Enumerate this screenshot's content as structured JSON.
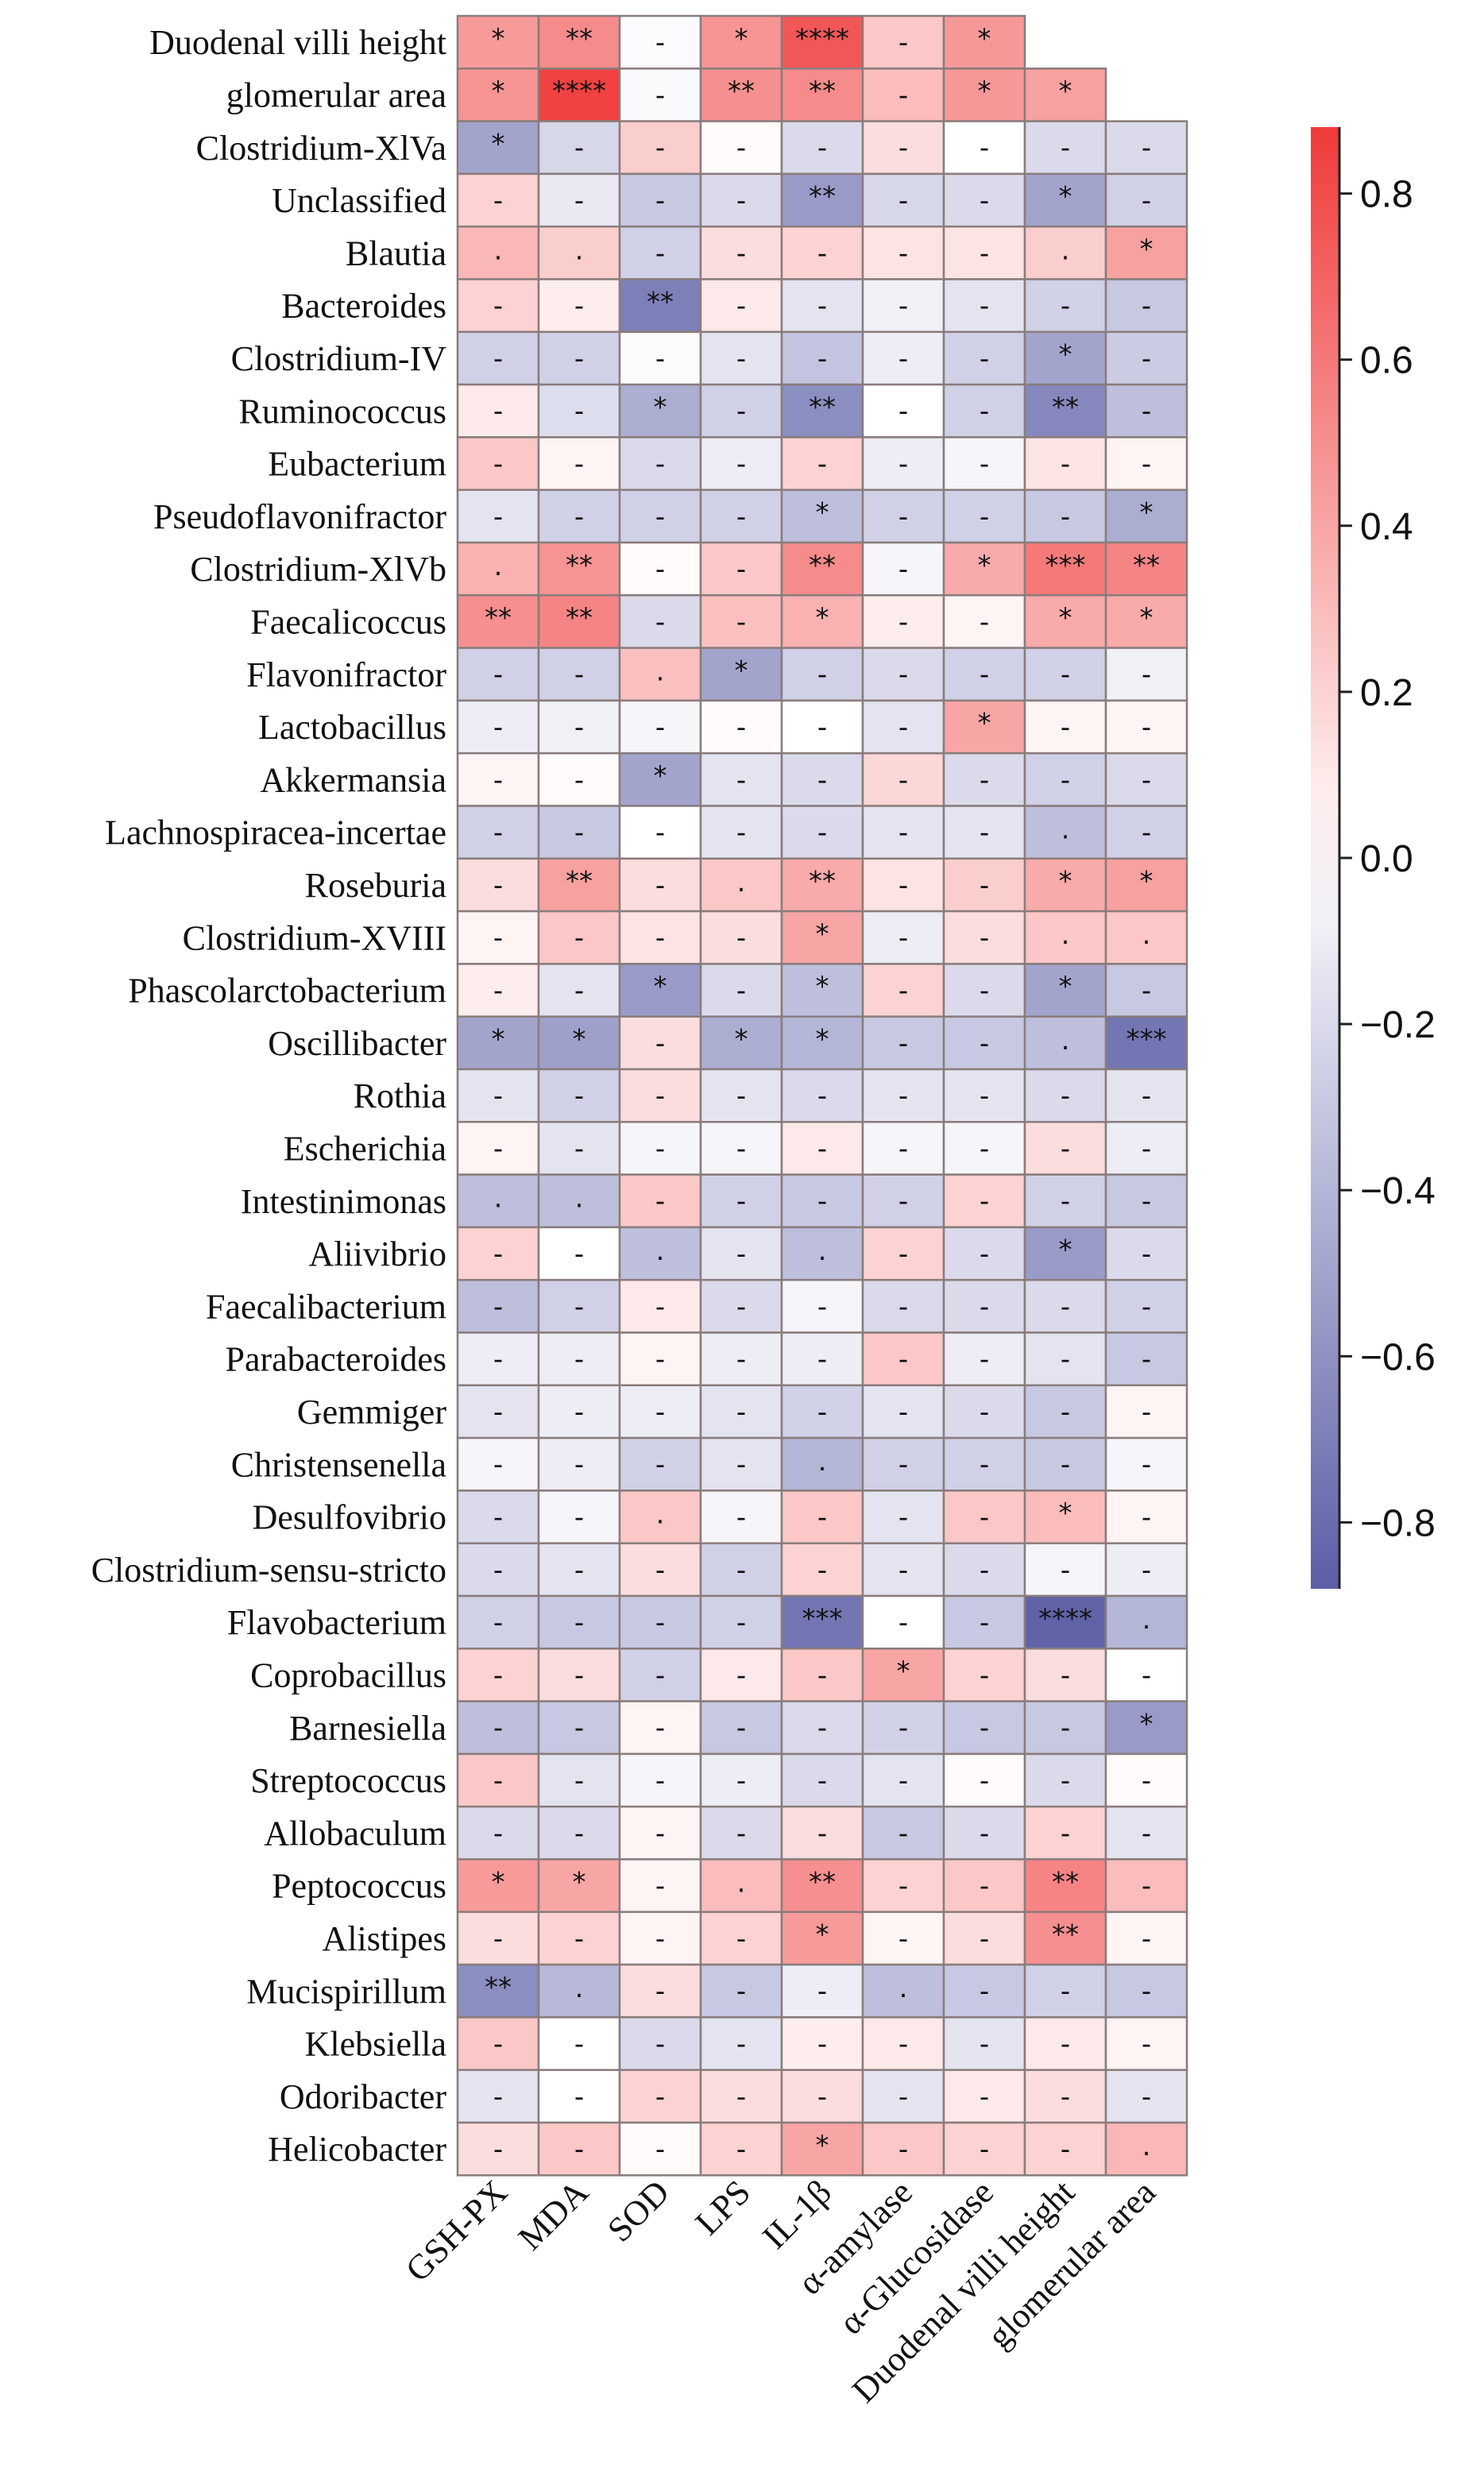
{
  "chart_data": {
    "type": "heatmap",
    "title": "",
    "xlabel": "",
    "ylabel": "",
    "columns": [
      "GSH-PX",
      "MDA",
      "SOD",
      "LPS",
      "IL-1β",
      "α-amylase",
      "α-Glucosidase",
      "Duodenal villi height",
      "glomerular area"
    ],
    "rows": [
      "Duodenal villi height",
      "glomerular area",
      "Clostridium-XlVa",
      "Unclassified",
      "Blautia",
      "Bacteroides",
      "Clostridium-IV",
      "Ruminococcus",
      "Eubacterium",
      "Pseudoflavonifractor",
      "Clostridium-XlVb",
      "Faecalicoccus",
      "Flavonifractor",
      "Lactobacillus",
      "Akkermansia",
      "Lachnospiracea-incertae",
      "Roseburia",
      "Clostridium-XVIII",
      "Phascolarctobacterium",
      "Oscillibacter",
      "Rothia",
      "Escherichia",
      "Intestinimonas",
      "Aliivibrio",
      "Faecalibacterium",
      "Parabacteroides",
      "Gemmiger",
      "Christensenella",
      "Desulfovibrio",
      "Clostridium-sensu-stricto",
      "Flavobacterium",
      "Coprobacillus",
      "Barnesiella",
      "Streptococcus",
      "Allobaculum",
      "Peptococcus",
      "Alistipes",
      "Mucispirillum",
      "Klebsiella",
      "Odoribacter",
      "Helicobacter"
    ],
    "values": [
      [
        0.45,
        0.52,
        -0.02,
        0.48,
        0.75,
        0.25,
        0.46,
        null,
        null
      ],
      [
        0.48,
        0.85,
        -0.03,
        0.5,
        0.52,
        0.3,
        0.46,
        0.42,
        null
      ],
      [
        -0.5,
        -0.22,
        0.22,
        0.02,
        -0.2,
        0.15,
        0.0,
        -0.2,
        -0.2
      ],
      [
        0.2,
        -0.12,
        -0.3,
        -0.2,
        -0.55,
        -0.22,
        -0.2,
        -0.5,
        -0.25
      ],
      [
        0.32,
        0.22,
        -0.25,
        0.15,
        0.2,
        0.12,
        0.12,
        0.22,
        0.42
      ],
      [
        0.2,
        0.08,
        -0.7,
        0.1,
        -0.15,
        -0.08,
        -0.15,
        -0.25,
        -0.3
      ],
      [
        -0.25,
        -0.25,
        -0.02,
        -0.15,
        -0.32,
        -0.1,
        -0.25,
        -0.5,
        -0.28
      ],
      [
        0.1,
        -0.18,
        -0.45,
        -0.25,
        -0.62,
        0.0,
        -0.25,
        -0.65,
        -0.35
      ],
      [
        0.25,
        0.05,
        -0.2,
        -0.1,
        0.2,
        -0.1,
        -0.05,
        0.12,
        0.05
      ],
      [
        -0.15,
        -0.25,
        -0.25,
        -0.25,
        -0.35,
        -0.25,
        -0.25,
        -0.3,
        -0.45
      ],
      [
        0.35,
        0.48,
        0.02,
        0.25,
        0.52,
        -0.05,
        0.38,
        0.6,
        0.55
      ],
      [
        0.5,
        0.55,
        -0.2,
        0.28,
        0.35,
        0.08,
        0.05,
        0.38,
        0.38
      ],
      [
        -0.25,
        -0.25,
        0.28,
        -0.5,
        -0.25,
        -0.2,
        -0.25,
        -0.25,
        -0.08
      ],
      [
        -0.1,
        -0.08,
        -0.05,
        0.02,
        0.0,
        -0.15,
        0.4,
        0.05,
        0.05
      ],
      [
        0.05,
        0.02,
        -0.5,
        -0.15,
        -0.2,
        0.18,
        -0.2,
        -0.25,
        -0.2
      ],
      [
        -0.25,
        -0.3,
        0.0,
        -0.15,
        -0.2,
        -0.15,
        -0.15,
        -0.35,
        -0.25
      ],
      [
        0.15,
        0.42,
        0.15,
        0.25,
        0.38,
        0.12,
        0.22,
        0.38,
        0.42
      ],
      [
        0.05,
        0.25,
        0.12,
        0.15,
        0.4,
        -0.1,
        0.15,
        0.25,
        0.25
      ],
      [
        0.08,
        -0.15,
        -0.55,
        -0.2,
        -0.35,
        0.2,
        -0.2,
        -0.5,
        -0.3
      ],
      [
        -0.5,
        -0.52,
        0.15,
        -0.45,
        -0.4,
        -0.3,
        -0.3,
        -0.35,
        -0.75
      ],
      [
        -0.15,
        -0.25,
        0.15,
        -0.15,
        -0.2,
        -0.15,
        -0.15,
        -0.2,
        -0.15
      ],
      [
        0.05,
        -0.15,
        -0.05,
        -0.05,
        0.1,
        -0.05,
        -0.05,
        0.15,
        -0.1
      ],
      [
        -0.35,
        -0.35,
        0.25,
        -0.25,
        -0.3,
        -0.25,
        0.2,
        -0.25,
        -0.3
      ],
      [
        0.2,
        0.0,
        -0.35,
        -0.15,
        -0.35,
        0.2,
        -0.2,
        -0.55,
        -0.2
      ],
      [
        -0.35,
        -0.25,
        0.1,
        -0.2,
        -0.05,
        -0.2,
        -0.2,
        -0.2,
        -0.25
      ],
      [
        -0.1,
        -0.1,
        0.05,
        -0.1,
        -0.1,
        0.25,
        -0.1,
        -0.15,
        -0.3
      ],
      [
        -0.15,
        -0.1,
        -0.1,
        -0.15,
        -0.25,
        -0.15,
        -0.2,
        -0.3,
        0.05
      ],
      [
        -0.05,
        -0.1,
        -0.25,
        -0.15,
        -0.4,
        -0.25,
        -0.25,
        -0.3,
        -0.05
      ],
      [
        -0.2,
        -0.05,
        0.25,
        -0.05,
        0.25,
        -0.15,
        0.25,
        0.3,
        0.05
      ],
      [
        -0.2,
        -0.15,
        0.15,
        -0.25,
        0.2,
        -0.15,
        -0.2,
        -0.05,
        -0.1
      ],
      [
        -0.25,
        -0.3,
        -0.3,
        -0.25,
        -0.75,
        0.0,
        -0.3,
        -0.85,
        -0.4
      ],
      [
        0.2,
        0.15,
        -0.25,
        0.1,
        0.25,
        0.4,
        0.2,
        0.15,
        0.0
      ],
      [
        -0.35,
        -0.3,
        0.05,
        -0.3,
        -0.2,
        -0.25,
        -0.3,
        -0.3,
        -0.55
      ],
      [
        0.25,
        -0.15,
        -0.05,
        -0.1,
        -0.2,
        -0.15,
        0.02,
        -0.2,
        0.02
      ],
      [
        -0.2,
        -0.2,
        0.05,
        -0.2,
        0.15,
        -0.3,
        -0.2,
        0.2,
        -0.15
      ],
      [
        0.45,
        0.4,
        0.05,
        0.3,
        0.5,
        0.2,
        0.25,
        0.55,
        0.3
      ],
      [
        0.15,
        0.2,
        0.05,
        0.2,
        0.45,
        0.05,
        0.15,
        0.5,
        0.05
      ],
      [
        -0.62,
        -0.38,
        0.15,
        -0.3,
        -0.1,
        -0.35,
        -0.3,
        -0.25,
        -0.3
      ],
      [
        0.25,
        0.0,
        -0.2,
        -0.15,
        0.08,
        0.1,
        -0.15,
        0.1,
        0.05
      ],
      [
        -0.15,
        0.0,
        0.2,
        0.15,
        0.15,
        -0.15,
        0.1,
        0.15,
        -0.15
      ],
      [
        0.15,
        0.25,
        0.02,
        0.2,
        0.4,
        0.25,
        0.2,
        0.2,
        0.32
      ]
    ],
    "significance": [
      [
        "*",
        "**",
        "-",
        "*",
        "****",
        "-",
        "*",
        "",
        ""
      ],
      [
        "*",
        "****",
        "-",
        "**",
        "**",
        "-",
        "*",
        "*",
        ""
      ],
      [
        "*",
        "-",
        "-",
        "-",
        "-",
        "-",
        "-",
        "-",
        "-"
      ],
      [
        "-",
        "-",
        "-",
        "-",
        "**",
        "-",
        "-",
        "*",
        "-"
      ],
      [
        ".",
        ".",
        "-",
        "-",
        "-",
        "-",
        "-",
        ".",
        "*"
      ],
      [
        "-",
        "-",
        "**",
        "-",
        "-",
        "-",
        "-",
        "-",
        "-"
      ],
      [
        "-",
        "-",
        "-",
        "-",
        "-",
        "-",
        "-",
        "*",
        "-"
      ],
      [
        "-",
        "-",
        "*",
        "-",
        "**",
        "-",
        "-",
        "**",
        "-"
      ],
      [
        "-",
        "-",
        "-",
        "-",
        "-",
        "-",
        "-",
        "-",
        "-"
      ],
      [
        "-",
        "-",
        "-",
        "-",
        "*",
        "-",
        "-",
        "-",
        "*"
      ],
      [
        ".",
        "**",
        "-",
        "-",
        "**",
        "-",
        "*",
        "***",
        "**"
      ],
      [
        "**",
        "**",
        "-",
        "-",
        "*",
        "-",
        "-",
        "*",
        "*"
      ],
      [
        "-",
        "-",
        ".",
        "*",
        "-",
        "-",
        "-",
        "-",
        "-"
      ],
      [
        "-",
        "-",
        "-",
        "-",
        "-",
        "-",
        "*",
        "-",
        "-"
      ],
      [
        "-",
        "-",
        "*",
        "-",
        "-",
        "-",
        "-",
        "-",
        "-"
      ],
      [
        "-",
        "-",
        "-",
        "-",
        "-",
        "-",
        "-",
        ".",
        "-"
      ],
      [
        "-",
        "**",
        "-",
        ".",
        "**",
        "-",
        "-",
        "*",
        "*"
      ],
      [
        "-",
        "-",
        "-",
        "-",
        "*",
        "-",
        "-",
        ".",
        "."
      ],
      [
        "-",
        "-",
        "*",
        "-",
        "*",
        "-",
        "-",
        "*",
        "-"
      ],
      [
        "*",
        "*",
        "-",
        "*",
        "*",
        "-",
        "-",
        ".",
        "***"
      ],
      [
        "-",
        "-",
        "-",
        "-",
        "-",
        "-",
        "-",
        "-",
        "-"
      ],
      [
        "-",
        "-",
        "-",
        "-",
        "-",
        "-",
        "-",
        "-",
        "-"
      ],
      [
        ".",
        ".",
        "-",
        "-",
        "-",
        "-",
        "-",
        "-",
        "-"
      ],
      [
        "-",
        "-",
        ".",
        "-",
        ".",
        "-",
        "-",
        "*",
        "-"
      ],
      [
        "-",
        "-",
        "-",
        "-",
        "-",
        "-",
        "-",
        "-",
        "-"
      ],
      [
        "-",
        "-",
        "-",
        "-",
        "-",
        "-",
        "-",
        "-",
        "-"
      ],
      [
        "-",
        "-",
        "-",
        "-",
        "-",
        "-",
        "-",
        "-",
        "-"
      ],
      [
        "-",
        "-",
        "-",
        "-",
        ".",
        "-",
        "-",
        "-",
        "-"
      ],
      [
        "-",
        "-",
        ".",
        "-",
        "-",
        "-",
        "-",
        "*",
        "-"
      ],
      [
        "-",
        "-",
        "-",
        "-",
        "-",
        "-",
        "-",
        "-",
        "-"
      ],
      [
        "-",
        "-",
        "-",
        "-",
        "***",
        "-",
        "-",
        "****",
        "."
      ],
      [
        "-",
        "-",
        "-",
        "-",
        "-",
        "*",
        "-",
        "-",
        "-"
      ],
      [
        "-",
        "-",
        "-",
        "-",
        "-",
        "-",
        "-",
        "-",
        "*"
      ],
      [
        "-",
        "-",
        "-",
        "-",
        "-",
        "-",
        "-",
        "-",
        "-"
      ],
      [
        "-",
        "-",
        "-",
        "-",
        "-",
        "-",
        "-",
        "-",
        "-"
      ],
      [
        "*",
        "*",
        "-",
        ".",
        "**",
        "-",
        "-",
        "**",
        "-"
      ],
      [
        "-",
        "-",
        "-",
        "-",
        "*",
        "-",
        "-",
        "**",
        "-"
      ],
      [
        "**",
        ".",
        "-",
        "-",
        "-",
        ".",
        "-",
        "-",
        "-"
      ],
      [
        "-",
        "-",
        "-",
        "-",
        "-",
        "-",
        "-",
        "-",
        "-"
      ],
      [
        "-",
        "-",
        "-",
        "-",
        "-",
        "-",
        "-",
        "-",
        "-"
      ],
      [
        "-",
        "-",
        "-",
        "-",
        "*",
        "-",
        "-",
        "-",
        "."
      ]
    ],
    "color_scale": {
      "min": -0.88,
      "max": 0.88,
      "low_color": "#5b5ea6",
      "mid_color": "#ffffff",
      "high_color": "#f03a3a",
      "ticks": [
        0.8,
        0.6,
        0.4,
        0.2,
        0.0,
        -0.2,
        -0.4,
        -0.6,
        -0.8
      ],
      "tick_labels": [
        "0.8",
        "0.6",
        "0.4",
        "0.2",
        "0.0",
        "−0.2",
        "−0.4",
        "−0.6",
        "−0.8"
      ]
    },
    "grid_color": "#8a7c7c"
  }
}
